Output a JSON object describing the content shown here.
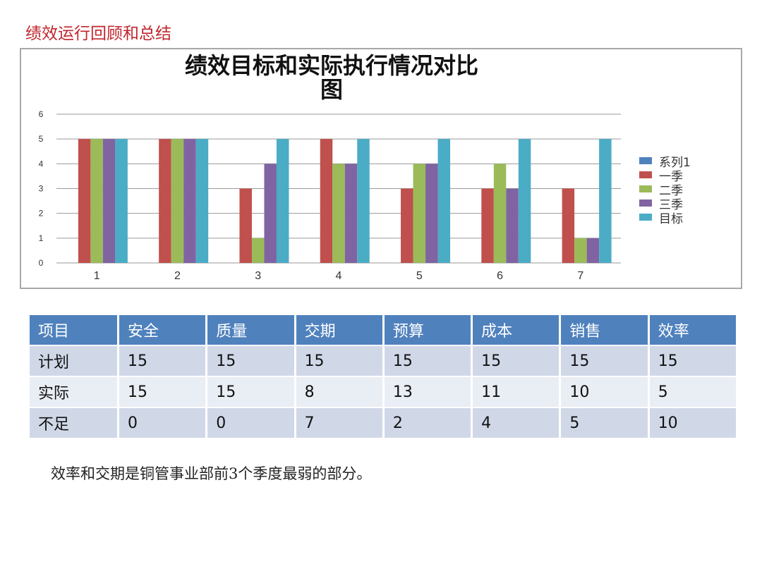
{
  "page": {
    "title": "绩效运行回顾和总结",
    "footnote": "效率和交期是铜管事业部前3个季度最弱的部分。"
  },
  "chart_data": {
    "type": "bar",
    "title": "绩效目标和实际执行情况对比图",
    "title_lines": [
      "绩效目标和实际执行情况对比",
      "图"
    ],
    "categories": [
      "1",
      "2",
      "3",
      "4",
      "5",
      "6",
      "7"
    ],
    "ylim": [
      0,
      6
    ],
    "yticks": [
      "0",
      "1",
      "2",
      "3",
      "4",
      "5",
      "6"
    ],
    "grid": true,
    "legend_position": "right",
    "series": [
      {
        "name": "系列1",
        "color": "#4f81bd",
        "values": [
          0,
          0,
          0,
          0,
          0,
          0,
          0
        ]
      },
      {
        "name": "一季",
        "color": "#c0504d",
        "values": [
          5,
          5,
          3,
          5,
          3,
          3,
          3
        ]
      },
      {
        "name": "二季",
        "color": "#9bbb59",
        "values": [
          5,
          5,
          1,
          4,
          4,
          4,
          1
        ]
      },
      {
        "name": "三季",
        "color": "#8064a2",
        "values": [
          5,
          5,
          4,
          4,
          4,
          3,
          1
        ]
      },
      {
        "name": "目标",
        "color": "#4bacc6",
        "values": [
          5,
          5,
          5,
          5,
          5,
          5,
          5
        ]
      }
    ]
  },
  "table": {
    "headers": [
      "项目",
      "安全",
      "质量",
      "交期",
      "预算",
      "成本",
      "销售",
      "效率"
    ],
    "rows": [
      [
        "计划",
        "15",
        "15",
        "15",
        "15",
        "15",
        "15",
        "15"
      ],
      [
        "实际",
        "15",
        "15",
        "8",
        "13",
        "11",
        "10",
        "5"
      ],
      [
        "不足",
        "0",
        "0",
        "7",
        "2",
        "4",
        "5",
        "10"
      ]
    ]
  }
}
